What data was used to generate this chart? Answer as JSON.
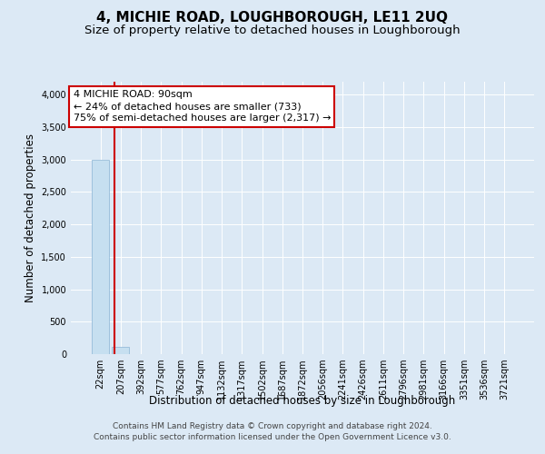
{
  "title": "4, MICHIE ROAD, LOUGHBOROUGH, LE11 2UQ",
  "subtitle": "Size of property relative to detached houses in Loughborough",
  "xlabel": "Distribution of detached houses by size in Loughborough",
  "ylabel": "Number of detached properties",
  "categories": [
    "22sqm",
    "207sqm",
    "392sqm",
    "577sqm",
    "762sqm",
    "947sqm",
    "1132sqm",
    "1317sqm",
    "1502sqm",
    "1687sqm",
    "1872sqm",
    "2056sqm",
    "2241sqm",
    "2426sqm",
    "2611sqm",
    "2796sqm",
    "2981sqm",
    "3166sqm",
    "3351sqm",
    "3536sqm",
    "3721sqm"
  ],
  "values": [
    3000,
    110,
    0,
    0,
    0,
    0,
    0,
    0,
    0,
    0,
    0,
    0,
    0,
    0,
    0,
    0,
    0,
    0,
    0,
    0,
    0
  ],
  "bar_color": "#c6dff0",
  "bar_edge_color": "#8ab4d4",
  "red_line_x": 0.68,
  "ylim": [
    0,
    4200
  ],
  "yticks": [
    0,
    500,
    1000,
    1500,
    2000,
    2500,
    3000,
    3500,
    4000
  ],
  "annotation_line1": "4 MICHIE ROAD: 90sqm",
  "annotation_line2": "← 24% of detached houses are smaller (733)",
  "annotation_line3": "75% of semi-detached houses are larger (2,317) →",
  "annotation_box_color": "#ffffff",
  "annotation_box_edge_color": "#cc0000",
  "footer_line1": "Contains HM Land Registry data © Crown copyright and database right 2024.",
  "footer_line2": "Contains public sector information licensed under the Open Government Licence v3.0.",
  "background_color": "#dce9f5",
  "plot_bg_color": "#dce9f5",
  "grid_color": "#ffffff",
  "red_line_color": "#cc0000",
  "title_fontsize": 11,
  "subtitle_fontsize": 9.5,
  "tick_fontsize": 7,
  "ylabel_fontsize": 8.5,
  "xlabel_fontsize": 8.5,
  "annotation_fontsize": 8,
  "footer_fontsize": 6.5
}
